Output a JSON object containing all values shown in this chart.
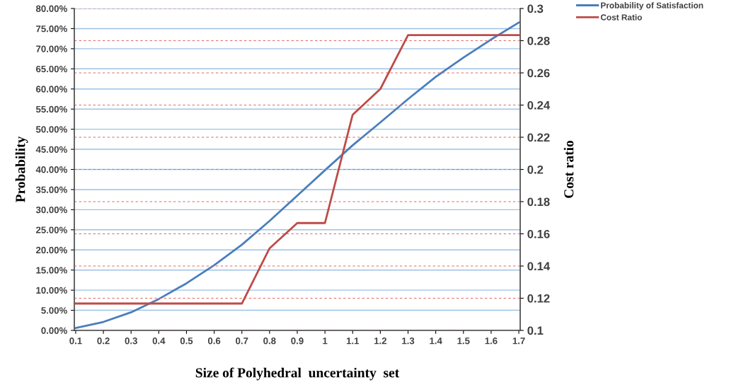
{
  "chart_data": {
    "type": "line",
    "xlabel": "Size of Polyhedral  uncertainty  set",
    "ylabel": "Probability",
    "y2label": "Cost ratio",
    "categories": [
      "0.1",
      "0.2",
      "0.3",
      "0.4",
      "0.5",
      "0.6",
      "0.7",
      "0.8",
      "0.9",
      "1",
      "1.1",
      "1.2",
      "1.3",
      "1.4",
      "1.5",
      "1.6",
      "1.7"
    ],
    "series": [
      {
        "name": "Probability of Satisfaction",
        "color": "#4a7ebb",
        "values": [
          0.6,
          2.1,
          4.5,
          7.8,
          11.7,
          16.2,
          21.3,
          27.2,
          33.5,
          39.8,
          46.0,
          51.7,
          57.5,
          63.0,
          67.8,
          72.3,
          76.5
        ]
      },
      {
        "name": "Cost Ratio",
        "color": "#be4b48",
        "axis": "y2",
        "values": [
          0.1167,
          0.1167,
          0.1167,
          0.1167,
          0.1167,
          0.1167,
          0.1167,
          0.151,
          0.1667,
          0.1667,
          0.234,
          0.25,
          0.2835,
          0.2835,
          0.2835,
          0.2835,
          0.2835
        ]
      }
    ],
    "ylim": [
      0,
      80
    ],
    "yticks": [
      {
        "value": 0,
        "label": "0.00%"
      },
      {
        "value": 5,
        "label": "5.00%"
      },
      {
        "value": 10,
        "label": "10.00%"
      },
      {
        "value": 15,
        "label": "15.00%"
      },
      {
        "value": 20,
        "label": "20.00%"
      },
      {
        "value": 25,
        "label": "25.00%"
      },
      {
        "value": 30,
        "label": "30.00%"
      },
      {
        "value": 35,
        "label": "35.00%"
      },
      {
        "value": 40,
        "label": "40.00%"
      },
      {
        "value": 45,
        "label": "45.00%"
      },
      {
        "value": 50,
        "label": "50.00%"
      },
      {
        "value": 55,
        "label": "55.00%"
      },
      {
        "value": 60,
        "label": "60.00%"
      },
      {
        "value": 65,
        "label": "65.00%"
      },
      {
        "value": 70,
        "label": "70.00%"
      },
      {
        "value": 75,
        "label": "75.00%"
      },
      {
        "value": 80,
        "label": "80.00%"
      }
    ],
    "y2lim": [
      0.1,
      0.3
    ],
    "y2ticks": [
      0.1,
      0.12,
      0.14,
      0.16,
      0.18,
      0.2,
      0.22,
      0.24,
      0.26,
      0.28,
      0.3
    ],
    "grid": true,
    "legend": "top right",
    "marker": "none",
    "line_style": "solid"
  }
}
